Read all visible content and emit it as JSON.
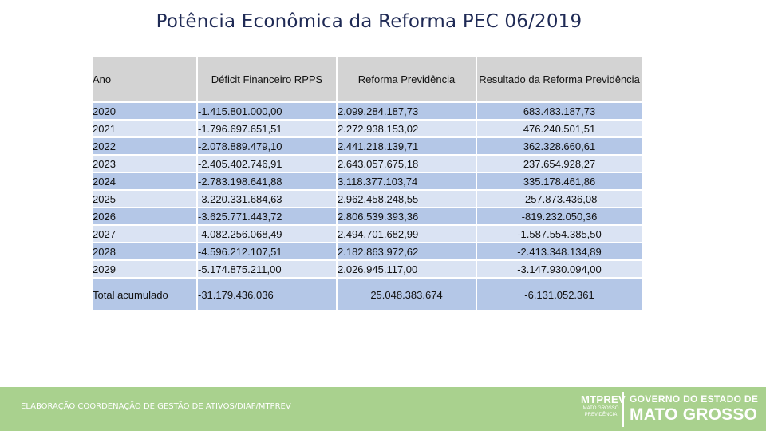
{
  "title": "Potência Econômica da Reforma PEC 06/2019",
  "table": {
    "headers": {
      "ano": "Ano",
      "deficit": "Déficit Financeiro RPPS",
      "reforma": "Reforma Previdência",
      "resultado": "Resultado da Reforma Previdência"
    },
    "rows": [
      {
        "ano": "2020",
        "deficit": "-1.415.801.000,00",
        "reforma": "2.099.284.187,73",
        "resultado": "683.483.187,73"
      },
      {
        "ano": "2021",
        "deficit": "-1.796.697.651,51",
        "reforma": "2.272.938.153,02",
        "resultado": "476.240.501,51"
      },
      {
        "ano": "2022",
        "deficit": "-2.078.889.479,10",
        "reforma": "2.441.218.139,71",
        "resultado": "362.328.660,61"
      },
      {
        "ano": "2023",
        "deficit": "-2.405.402.746,91",
        "reforma": "2.643.057.675,18",
        "resultado": "237.654.928,27"
      },
      {
        "ano": "2024",
        "deficit": "-2.783.198.641,88",
        "reforma": "3.118.377.103,74",
        "resultado": "335.178.461,86"
      },
      {
        "ano": "2025",
        "deficit": "-3.220.331.684,63",
        "reforma": "2.962.458.248,55",
        "resultado": "-257.873.436,08"
      },
      {
        "ano": "2026",
        "deficit": "-3.625.771.443,72",
        "reforma": "2.806.539.393,36",
        "resultado": "-819.232.050,36"
      },
      {
        "ano": "2027",
        "deficit": "-4.082.256.068,49",
        "reforma": "2.494.701.682,99",
        "resultado": "-1.587.554.385,50"
      },
      {
        "ano": "2028",
        "deficit": "-4.596.212.107,51",
        "reforma": "2.182.863.972,62",
        "resultado": "-2.413.348.134,89"
      },
      {
        "ano": "2029",
        "deficit": "-5.174.875.211,00",
        "reforma": "2.026.945.117,00",
        "resultado": "-3.147.930.094,00"
      }
    ],
    "total": {
      "label": "Total acumulado",
      "deficit": "-31.179.436.036",
      "reforma": "25.048.383.674",
      "resultado": "-6.131.052.361"
    }
  },
  "footer": {
    "credit": "ELABORAÇÃO COORDENAÇÃO DE GESTÃO DE ATIVOS/DIAF/MTPREV",
    "logo_left_main": "MTPREV",
    "logo_left_sub1": "MATO GROSSO",
    "logo_left_sub2": "PREVIDÊNCIA",
    "logo_right_line1": "GOVERNO DO ESTADO DE",
    "logo_right_line2": "MATO GROSSO"
  }
}
